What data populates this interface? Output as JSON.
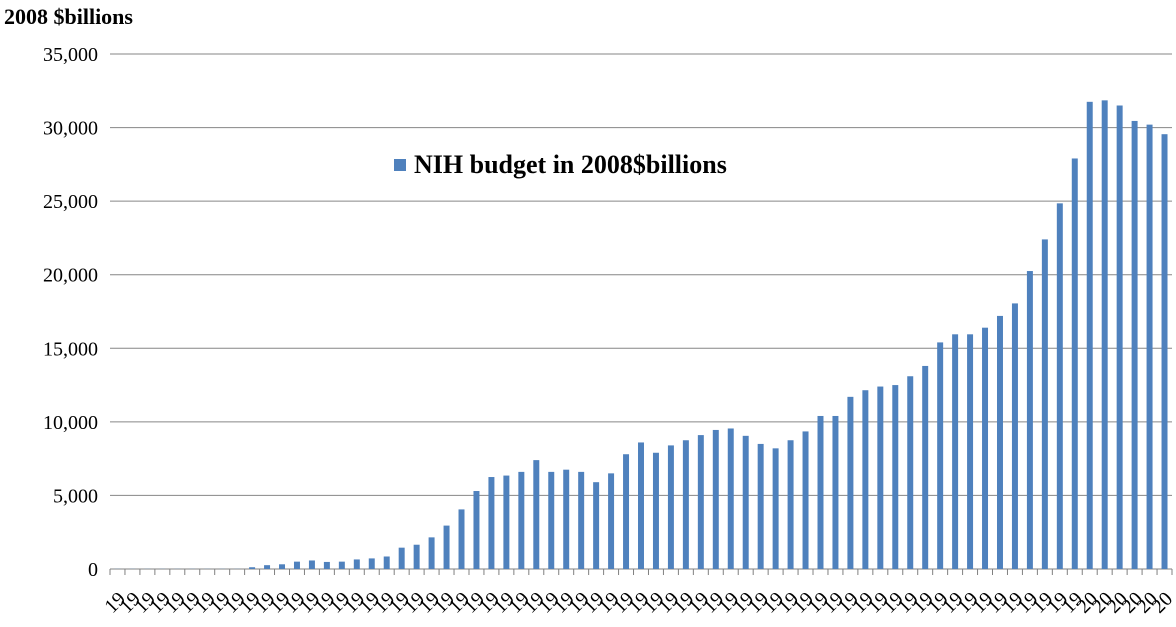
{
  "chart_data": {
    "type": "bar",
    "unit_label": "2008 $billions",
    "legend": "NIH budget in 2008$billions",
    "color": "#4F81BD",
    "ylim": [
      0,
      35000
    ],
    "yticks": [
      "0",
      "5,000",
      "10,000",
      "15,000",
      "20,000",
      "25,000",
      "30,000",
      "35,000"
    ],
    "categories": [
      "19",
      "19",
      "19",
      "19",
      "19",
      "19",
      "19",
      "19",
      "19",
      "19",
      "19",
      "19",
      "19",
      "19",
      "19",
      "19",
      "19",
      "19",
      "19",
      "19",
      "19",
      "19",
      "19",
      "19",
      "19",
      "19",
      "19",
      "19",
      "19",
      "19",
      "19",
      "19",
      "19",
      "19",
      "19",
      "19",
      "19",
      "19",
      "19",
      "19",
      "19",
      "19",
      "19",
      "19",
      "19",
      "19",
      "19",
      "19",
      "19",
      "19",
      "19",
      "19",
      "19",
      "19",
      "19",
      "19",
      "19",
      "19",
      "19",
      "19",
      "19",
      "19",
      "19",
      "19",
      "19",
      "20",
      "20",
      "20",
      "20",
      "20",
      "20"
    ],
    "values": [
      10,
      10,
      10,
      10,
      10,
      10,
      10,
      10,
      10,
      120,
      260,
      320,
      500,
      580,
      480,
      500,
      650,
      720,
      850,
      1450,
      1650,
      2150,
      2950,
      4050,
      5300,
      6250,
      6350,
      6600,
      7400,
      6600,
      6750,
      6600,
      5900,
      6500,
      7800,
      8600,
      7900,
      8400,
      8750,
      9100,
      9450,
      9550,
      9050,
      8500,
      8200,
      8750,
      9350,
      10400,
      10400,
      11700,
      12150,
      12400,
      12500,
      13100,
      13800,
      15400,
      15950,
      15950,
      16400,
      17200,
      18050,
      20250,
      22400,
      24850,
      27900,
      31750,
      31850,
      31500,
      30450,
      30200,
      29550
    ]
  }
}
